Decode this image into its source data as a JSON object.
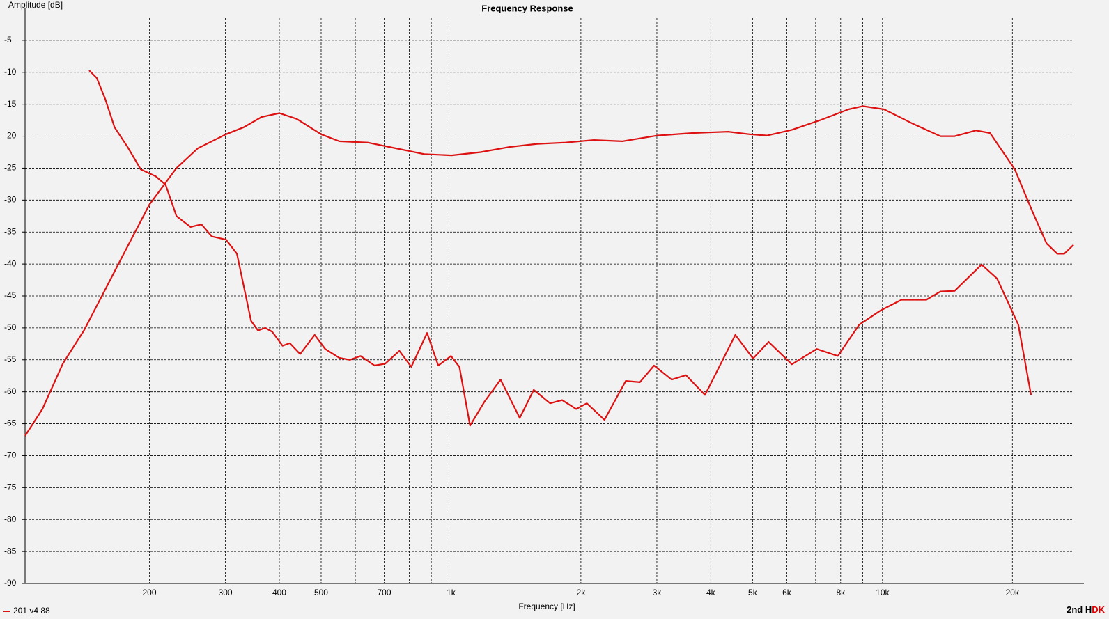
{
  "chart_data": {
    "type": "line",
    "title": "Frequency Response",
    "xlabel": "Frequency [Hz]",
    "ylabel": "Amplitude [dB]",
    "xscale": "log",
    "xlim": [
      103,
      29300
    ],
    "ylim": [
      -90,
      0
    ],
    "xticks": [
      200,
      300,
      400,
      500,
      700,
      {
        "value": 1000,
        "label": "1k"
      },
      {
        "value": 2000,
        "label": "2k"
      },
      {
        "value": 3000,
        "label": "3k"
      },
      {
        "value": 4000,
        "label": "4k"
      },
      {
        "value": 5000,
        "label": "5k"
      },
      {
        "value": 6000,
        "label": "6k"
      },
      {
        "value": 8000,
        "label": "8k"
      },
      {
        "value": 10000,
        "label": "10k"
      },
      {
        "value": 20000,
        "label": "20k"
      }
    ],
    "xgrid_minor": [
      600,
      800,
      900,
      7000,
      9000
    ],
    "yticks": [
      -90,
      -85,
      -80,
      -75,
      -70,
      -65,
      -60,
      -55,
      -50,
      -45,
      -40,
      -35,
      -30,
      -25,
      -20,
      -15,
      -10,
      -5
    ],
    "grid": true,
    "legend": "bottom-left",
    "annotation": [
      "2nd H",
      "DK"
    ],
    "annotation_colors": [
      "#000000",
      "#e00000"
    ],
    "series": [
      {
        "name": "201 v4 88",
        "color": "#dd1111",
        "x": [
          103,
          113,
          126,
          141,
          158,
          171,
          200,
          231,
          259,
          301,
          331,
          364,
          400,
          439,
          500,
          551,
          641,
          745,
          866,
          1003,
          1172,
          1363,
          1585,
          1844,
          2144,
          2494,
          3011,
          3637,
          4391,
          4918,
          5406,
          6168,
          7173,
          8343,
          9000,
          10080,
          11720,
          13630,
          14700,
          16460,
          17750,
          20260,
          22260,
          24010,
          25410,
          26390,
          27710
        ],
        "values": [
          -66.9,
          -62.7,
          -55.6,
          -50.4,
          -44,
          -39.5,
          -30.7,
          -25,
          -21.9,
          -19.7,
          -18.6,
          -17,
          -16.4,
          -17.3,
          -19.7,
          -20.8,
          -21,
          -21.9,
          -22.8,
          -23,
          -22.5,
          -21.7,
          -21.2,
          -21,
          -20.6,
          -20.8,
          -19.9,
          -19.5,
          -19.3,
          -19.7,
          -19.9,
          -19,
          -17.5,
          -15.8,
          -15.3,
          -15.8,
          -18,
          -20,
          -20,
          -19.1,
          -19.5,
          -25.2,
          -31.8,
          -36.8,
          -38.4,
          -38.4,
          -37
        ]
      },
      {
        "color": "#dd1111",
        "x": [
          145,
          151,
          158,
          166,
          178,
          191,
          207,
          218,
          231,
          249,
          264,
          279,
          301,
          319,
          344,
          357,
          371,
          385,
          407,
          423,
          447,
          483,
          511,
          551,
          583,
          617,
          665,
          704,
          759,
          809,
          880,
          934,
          1000,
          1046,
          1107,
          1194,
          1303,
          1443,
          1555,
          1697,
          1809,
          1951,
          2064,
          2268,
          2541,
          2740,
          2955,
          3247,
          3503,
          3878,
          4560,
          5012,
          5445,
          6168,
          7040,
          7882,
          8833,
          9887,
          11070,
          12640,
          13630,
          14700,
          16970,
          18440,
          20640,
          22100
        ],
        "values": [
          -9.7,
          -10.9,
          -14.2,
          -18.6,
          -21.7,
          -25.2,
          -26.3,
          -27.6,
          -32.5,
          -34.2,
          -33.8,
          -35.7,
          -36.2,
          -38.4,
          -48.9,
          -50.4,
          -50,
          -50.6,
          -52.8,
          -52.4,
          -54.1,
          -51.1,
          -53.3,
          -54.7,
          -55,
          -54.4,
          -55.9,
          -55.6,
          -53.6,
          -56.1,
          -50.8,
          -55.9,
          -54.4,
          -56.1,
          -65.3,
          -61.6,
          -58.1,
          -64.1,
          -59.7,
          -61.8,
          -61.3,
          -62.7,
          -61.8,
          -64.4,
          -58.3,
          -58.5,
          -55.9,
          -58.1,
          -57.4,
          -60.5,
          -51.1,
          -54.8,
          -52.2,
          -55.7,
          -53.3,
          -54.4,
          -49.5,
          -47.3,
          -45.6,
          -45.6,
          -44.3,
          -44.2,
          -40.1,
          -42.3,
          -49.5,
          -60.5
        ]
      }
    ]
  }
}
